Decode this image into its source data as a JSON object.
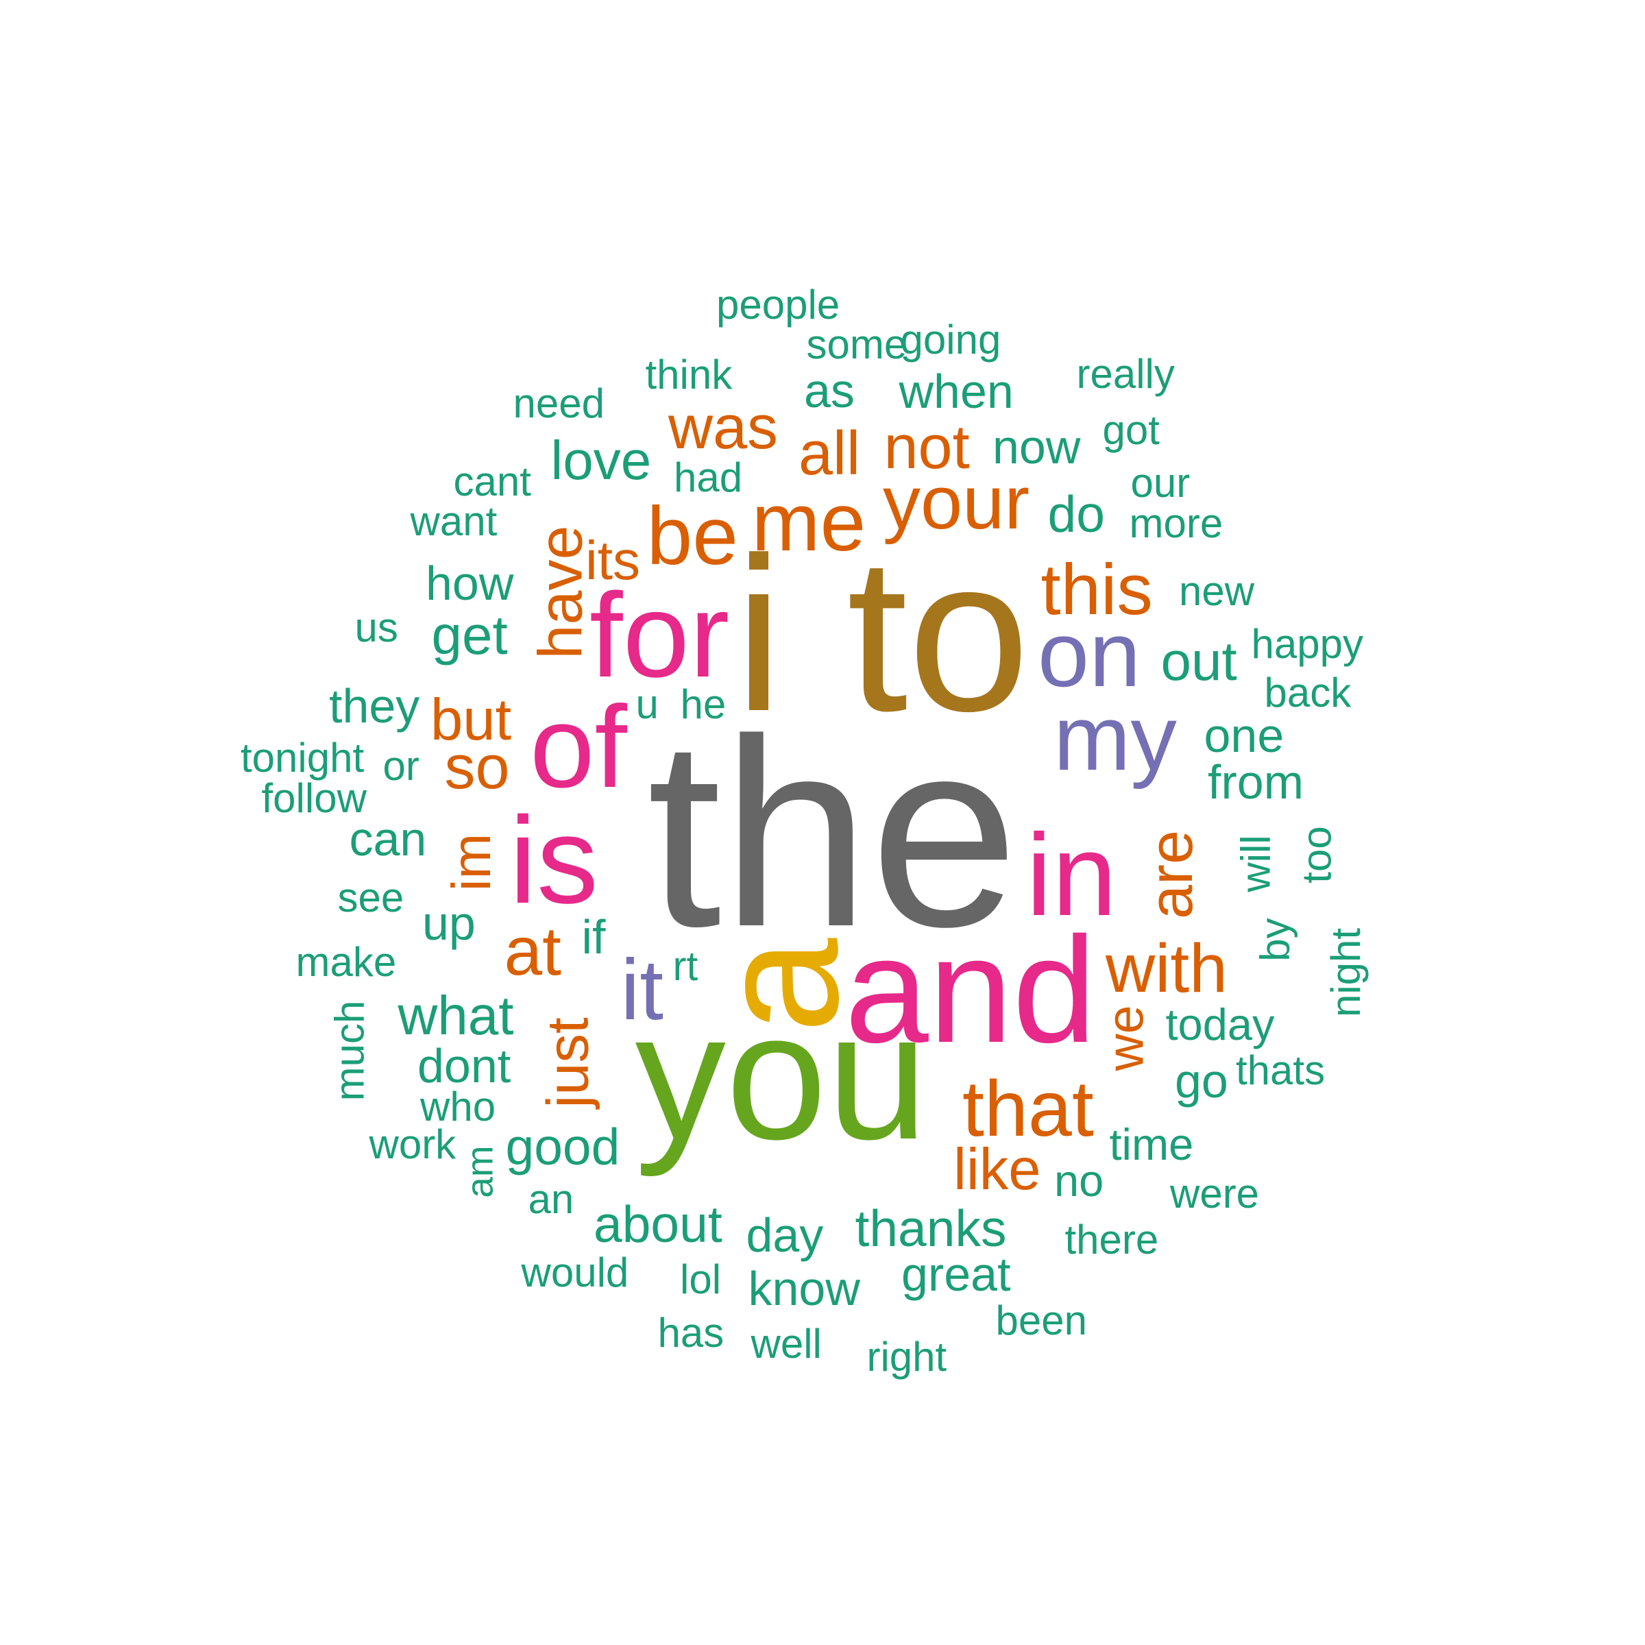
{
  "palette": {
    "dark-gray": "#666666",
    "olive-brown": "#A6761D",
    "mustard": "#E6AB02",
    "leaf-green": "#66A61E",
    "magenta": "#E7298A",
    "lavender": "#7570B3",
    "burnt-orange": "#D95F02",
    "teal": "#1B9E77"
  },
  "words": [
    {
      "text": "the",
      "color": "dark-gray",
      "rotated": false
    },
    {
      "text": "i",
      "color": "olive-brown",
      "rotated": false
    },
    {
      "text": "to",
      "color": "olive-brown",
      "rotated": false
    },
    {
      "text": "a",
      "color": "mustard",
      "rotated": true
    },
    {
      "text": "you",
      "color": "leaf-green",
      "rotated": false
    },
    {
      "text": "and",
      "color": "magenta",
      "rotated": false
    },
    {
      "text": "for",
      "color": "magenta",
      "rotated": false
    },
    {
      "text": "of",
      "color": "magenta",
      "rotated": false
    },
    {
      "text": "is",
      "color": "magenta",
      "rotated": false
    },
    {
      "text": "in",
      "color": "magenta",
      "rotated": false
    },
    {
      "text": "on",
      "color": "lavender",
      "rotated": false
    },
    {
      "text": "my",
      "color": "lavender",
      "rotated": false
    },
    {
      "text": "it",
      "color": "lavender",
      "rotated": false
    },
    {
      "text": "me",
      "color": "burnt-orange",
      "rotated": false
    },
    {
      "text": "be",
      "color": "burnt-orange",
      "rotated": false
    },
    {
      "text": "your",
      "color": "burnt-orange",
      "rotated": false
    },
    {
      "text": "this",
      "color": "burnt-orange",
      "rotated": false
    },
    {
      "text": "have",
      "color": "burnt-orange",
      "rotated": true
    },
    {
      "text": "was",
      "color": "burnt-orange",
      "rotated": false
    },
    {
      "text": "all",
      "color": "burnt-orange",
      "rotated": false
    },
    {
      "text": "not",
      "color": "burnt-orange",
      "rotated": false
    },
    {
      "text": "but",
      "color": "burnt-orange",
      "rotated": false
    },
    {
      "text": "so",
      "color": "burnt-orange",
      "rotated": false
    },
    {
      "text": "im",
      "color": "burnt-orange",
      "rotated": true
    },
    {
      "text": "are",
      "color": "burnt-orange",
      "rotated": true
    },
    {
      "text": "at",
      "color": "burnt-orange",
      "rotated": false
    },
    {
      "text": "with",
      "color": "burnt-orange",
      "rotated": false
    },
    {
      "text": "just",
      "color": "burnt-orange",
      "rotated": true
    },
    {
      "text": "that",
      "color": "burnt-orange",
      "rotated": false
    },
    {
      "text": "we",
      "color": "burnt-orange",
      "rotated": true
    },
    {
      "text": "like",
      "color": "burnt-orange",
      "rotated": false
    },
    {
      "text": "its",
      "color": "burnt-orange",
      "rotated": false
    },
    {
      "text": "people",
      "color": "teal",
      "rotated": false
    },
    {
      "text": "some",
      "color": "teal",
      "rotated": false
    },
    {
      "text": "going",
      "color": "teal",
      "rotated": false
    },
    {
      "text": "think",
      "color": "teal",
      "rotated": false
    },
    {
      "text": "really",
      "color": "teal",
      "rotated": false
    },
    {
      "text": "need",
      "color": "teal",
      "rotated": false
    },
    {
      "text": "as",
      "color": "teal",
      "rotated": false
    },
    {
      "text": "when",
      "color": "teal",
      "rotated": false
    },
    {
      "text": "now",
      "color": "teal",
      "rotated": false
    },
    {
      "text": "got",
      "color": "teal",
      "rotated": false
    },
    {
      "text": "love",
      "color": "teal",
      "rotated": false
    },
    {
      "text": "cant",
      "color": "teal",
      "rotated": false
    },
    {
      "text": "had",
      "color": "teal",
      "rotated": false
    },
    {
      "text": "our",
      "color": "teal",
      "rotated": false
    },
    {
      "text": "want",
      "color": "teal",
      "rotated": false
    },
    {
      "text": "do",
      "color": "teal",
      "rotated": false
    },
    {
      "text": "more",
      "color": "teal",
      "rotated": false
    },
    {
      "text": "how",
      "color": "teal",
      "rotated": false
    },
    {
      "text": "new",
      "color": "teal",
      "rotated": false
    },
    {
      "text": "us",
      "color": "teal",
      "rotated": false
    },
    {
      "text": "get",
      "color": "teal",
      "rotated": false
    },
    {
      "text": "happy",
      "color": "teal",
      "rotated": false
    },
    {
      "text": "out",
      "color": "teal",
      "rotated": false
    },
    {
      "text": "back",
      "color": "teal",
      "rotated": false
    },
    {
      "text": "they",
      "color": "teal",
      "rotated": false
    },
    {
      "text": "u",
      "color": "teal",
      "rotated": false
    },
    {
      "text": "he",
      "color": "teal",
      "rotated": false
    },
    {
      "text": "tonight",
      "color": "teal",
      "rotated": false
    },
    {
      "text": "or",
      "color": "teal",
      "rotated": false
    },
    {
      "text": "one",
      "color": "teal",
      "rotated": false
    },
    {
      "text": "follow",
      "color": "teal",
      "rotated": false
    },
    {
      "text": "from",
      "color": "teal",
      "rotated": false
    },
    {
      "text": "can",
      "color": "teal",
      "rotated": false
    },
    {
      "text": "will",
      "color": "teal",
      "rotated": true
    },
    {
      "text": "too",
      "color": "teal",
      "rotated": true
    },
    {
      "text": "see",
      "color": "teal",
      "rotated": false
    },
    {
      "text": "up",
      "color": "teal",
      "rotated": false
    },
    {
      "text": "if",
      "color": "teal",
      "rotated": false
    },
    {
      "text": "by",
      "color": "teal",
      "rotated": true
    },
    {
      "text": "make",
      "color": "teal",
      "rotated": false
    },
    {
      "text": "rt",
      "color": "teal",
      "rotated": false
    },
    {
      "text": "night",
      "color": "teal",
      "rotated": true
    },
    {
      "text": "what",
      "color": "teal",
      "rotated": false
    },
    {
      "text": "much",
      "color": "teal",
      "rotated": true
    },
    {
      "text": "today",
      "color": "teal",
      "rotated": false
    },
    {
      "text": "dont",
      "color": "teal",
      "rotated": false
    },
    {
      "text": "go",
      "color": "teal",
      "rotated": false
    },
    {
      "text": "thats",
      "color": "teal",
      "rotated": false
    },
    {
      "text": "who",
      "color": "teal",
      "rotated": false
    },
    {
      "text": "work",
      "color": "teal",
      "rotated": false
    },
    {
      "text": "good",
      "color": "teal",
      "rotated": false
    },
    {
      "text": "am",
      "color": "teal",
      "rotated": true
    },
    {
      "text": "time",
      "color": "teal",
      "rotated": false
    },
    {
      "text": "no",
      "color": "teal",
      "rotated": false
    },
    {
      "text": "an",
      "color": "teal",
      "rotated": false
    },
    {
      "text": "were",
      "color": "teal",
      "rotated": false
    },
    {
      "text": "about",
      "color": "teal",
      "rotated": false
    },
    {
      "text": "thanks",
      "color": "teal",
      "rotated": false
    },
    {
      "text": "day",
      "color": "teal",
      "rotated": false
    },
    {
      "text": "there",
      "color": "teal",
      "rotated": false
    },
    {
      "text": "would",
      "color": "teal",
      "rotated": false
    },
    {
      "text": "lol",
      "color": "teal",
      "rotated": false
    },
    {
      "text": "great",
      "color": "teal",
      "rotated": false
    },
    {
      "text": "know",
      "color": "teal",
      "rotated": false
    },
    {
      "text": "been",
      "color": "teal",
      "rotated": false
    },
    {
      "text": "has",
      "color": "teal",
      "rotated": false
    },
    {
      "text": "well",
      "color": "teal",
      "rotated": false
    },
    {
      "text": "right",
      "color": "teal",
      "rotated": false
    }
  ]
}
